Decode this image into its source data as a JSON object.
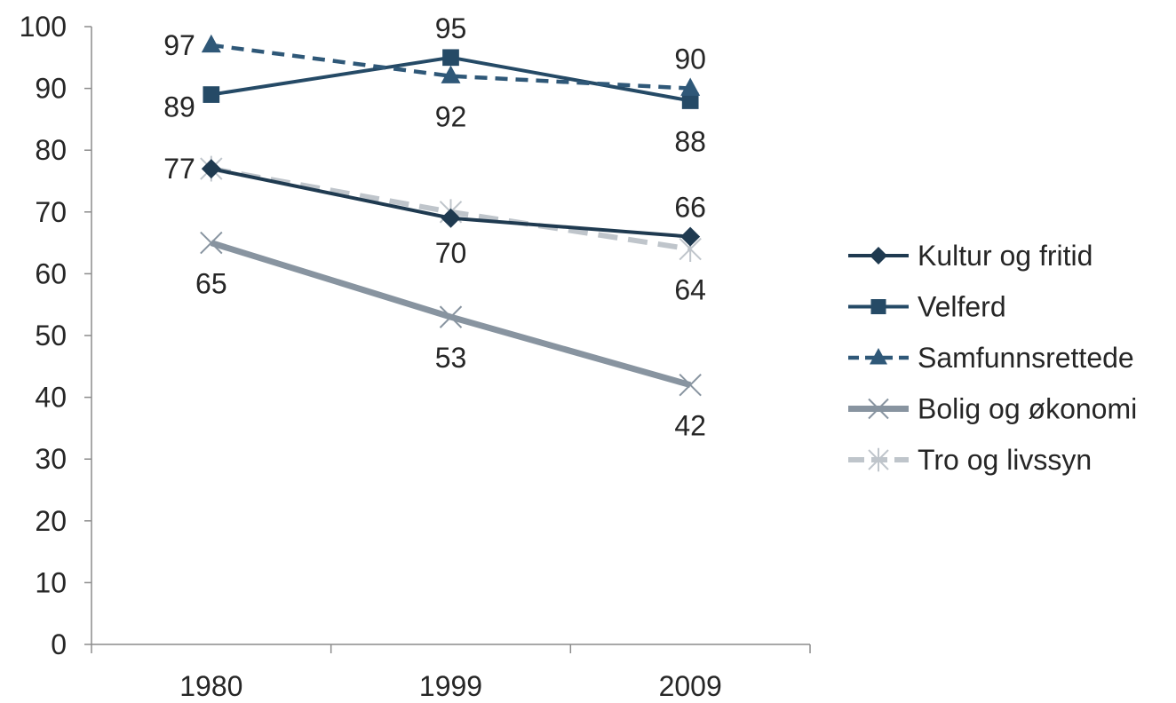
{
  "chart_data": {
    "type": "line",
    "categories": [
      "1980",
      "1999",
      "2009"
    ],
    "ylim": [
      0,
      100
    ],
    "yticks": [
      "0",
      "10",
      "20",
      "30",
      "40",
      "50",
      "60",
      "70",
      "80",
      "90",
      "100"
    ],
    "grid": false,
    "legend_position": "right",
    "series": [
      {
        "name": "Kultur og fritid",
        "values": [
          77,
          69,
          66
        ],
        "color": "#1f3a50",
        "dash": "solid",
        "marker": "diamond"
      },
      {
        "name": "Velferd",
        "values": [
          89,
          95,
          88
        ],
        "color": "#254a66",
        "dash": "solid",
        "marker": "square"
      },
      {
        "name": "Samfunnsrettede",
        "values": [
          97,
          92,
          90
        ],
        "color": "#2f5878",
        "dash": "dashed",
        "marker": "triangle"
      },
      {
        "name": "Bolig og økonomi",
        "values": [
          65,
          53,
          42
        ],
        "color": "#8894a0",
        "dash": "solid",
        "marker": "x"
      },
      {
        "name": "Tro og livssyn",
        "values": [
          77,
          70,
          64
        ],
        "color": "#bfc5cb",
        "dash": "dashed",
        "marker": "star"
      }
    ],
    "data_labels": [
      {
        "text": "97",
        "series": 2,
        "index": 0,
        "anchor": "left"
      },
      {
        "text": "89",
        "series": 1,
        "index": 0,
        "anchor": "below-left"
      },
      {
        "text": "77",
        "series": 0,
        "index": 0,
        "anchor": "left"
      },
      {
        "text": "65",
        "series": 3,
        "index": 0,
        "anchor": "below"
      },
      {
        "text": "95",
        "series": 1,
        "index": 1,
        "anchor": "above"
      },
      {
        "text": "92",
        "series": 2,
        "index": 1,
        "anchor": "below"
      },
      {
        "text": "70",
        "series": 4,
        "index": 1,
        "anchor": "below"
      },
      {
        "text": "53",
        "series": 3,
        "index": 1,
        "anchor": "below"
      },
      {
        "text": "90",
        "series": 2,
        "index": 2,
        "anchor": "above"
      },
      {
        "text": "88",
        "series": 1,
        "index": 2,
        "anchor": "below"
      },
      {
        "text": "66",
        "series": 0,
        "index": 2,
        "anchor": "above"
      },
      {
        "text": "64",
        "series": 4,
        "index": 2,
        "anchor": "below"
      },
      {
        "text": "42",
        "series": 3,
        "index": 2,
        "anchor": "below"
      }
    ]
  }
}
